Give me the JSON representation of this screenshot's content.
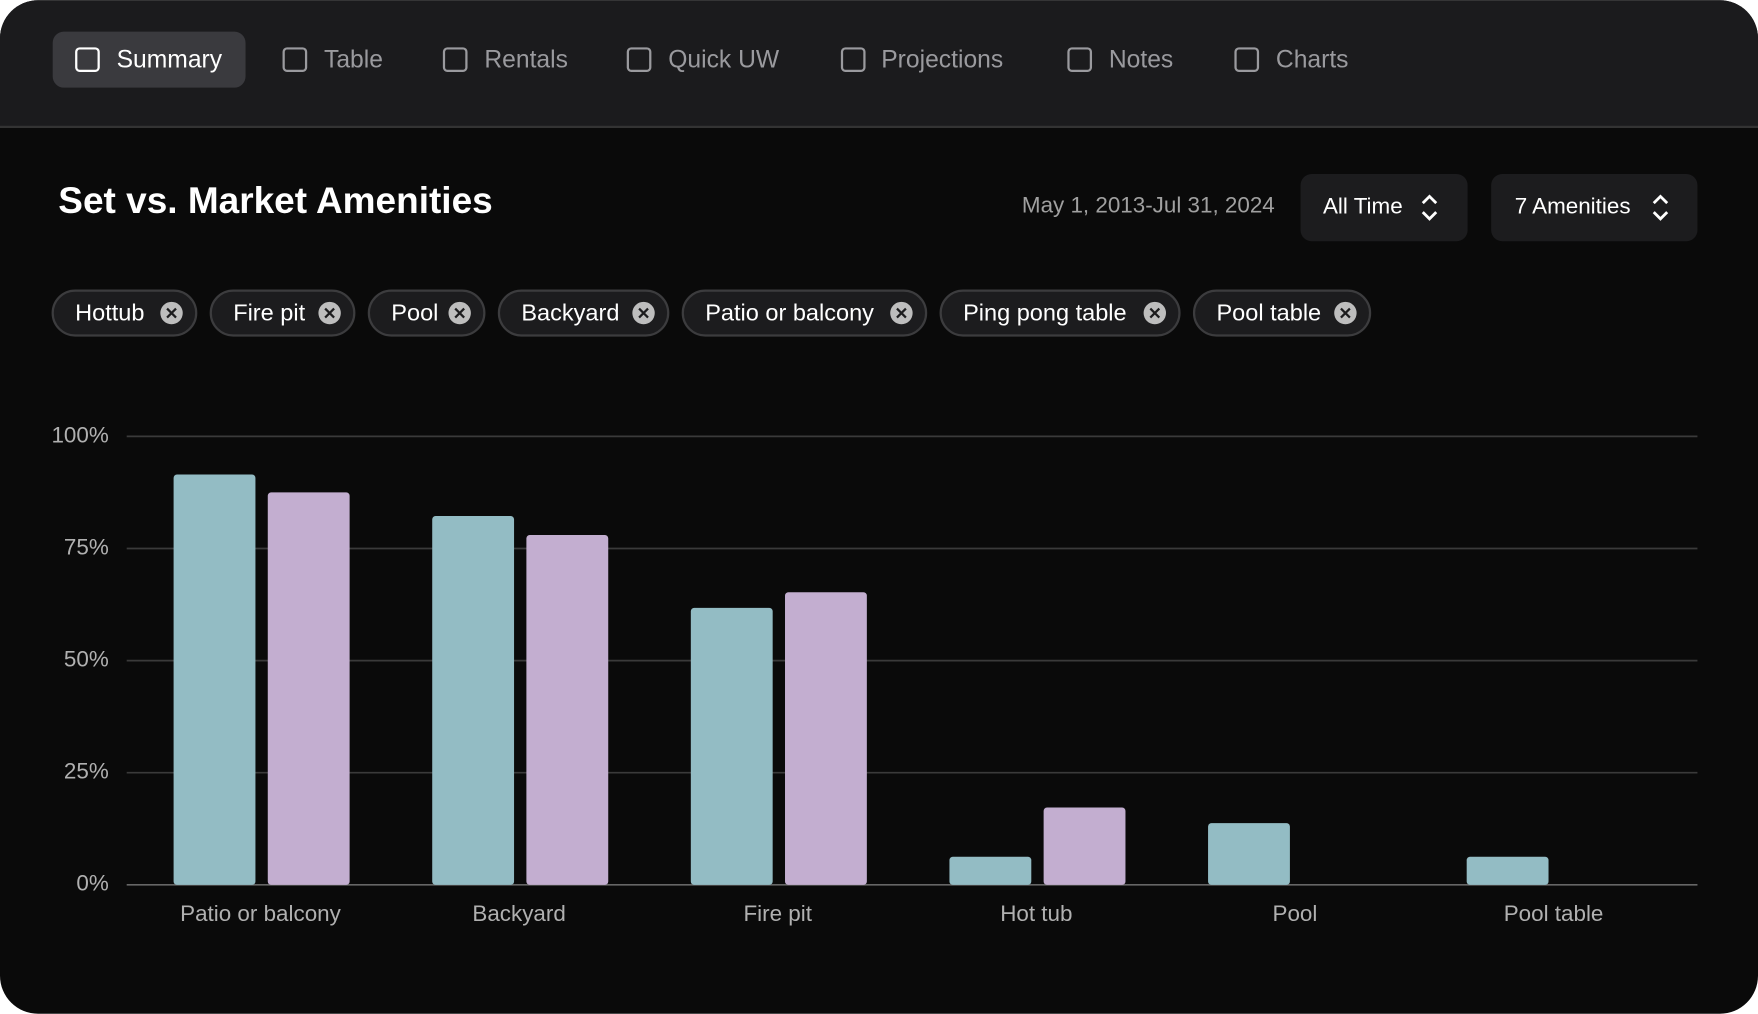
{
  "tabs": [
    "Summary",
    "Table",
    "Rentals",
    "Quick UW",
    "Projections",
    "Notes",
    "Charts"
  ],
  "active_tab": "Summary",
  "date_range": "May 1, 2013-Jul 31, 2024",
  "period_select": "All Time",
  "amenities_select": "7 Amenities",
  "chips": [
    "Hottub",
    "Fire pit",
    "Pool",
    "Backyard",
    "Patio or balcony",
    "Ping pong table",
    "Pool table"
  ],
  "chart_data": {
    "type": "bar",
    "title": "Set vs. Market Amenities",
    "categories": [
      "Patio or balcony",
      "Backyard",
      "Fire pit",
      "Hot tub",
      "Pool",
      "Pool table"
    ],
    "series": [
      {
        "color": "#93bcc4",
        "values": [
          91.5,
          82.25,
          61.75,
          6.25,
          13.75,
          6.25
        ]
      },
      {
        "color": "#c3aed0",
        "values": [
          87.5,
          78,
          65.25,
          17.25,
          0,
          0
        ]
      }
    ],
    "ylim": [
      0,
      100
    ],
    "yticks": [
      {
        "value": 0,
        "label": "0%"
      },
      {
        "value": 25,
        "label": "25%"
      },
      {
        "value": 50,
        "label": "50%"
      },
      {
        "value": 75,
        "label": "75%"
      },
      {
        "value": 100,
        "label": "100%"
      }
    ],
    "grid": true
  }
}
